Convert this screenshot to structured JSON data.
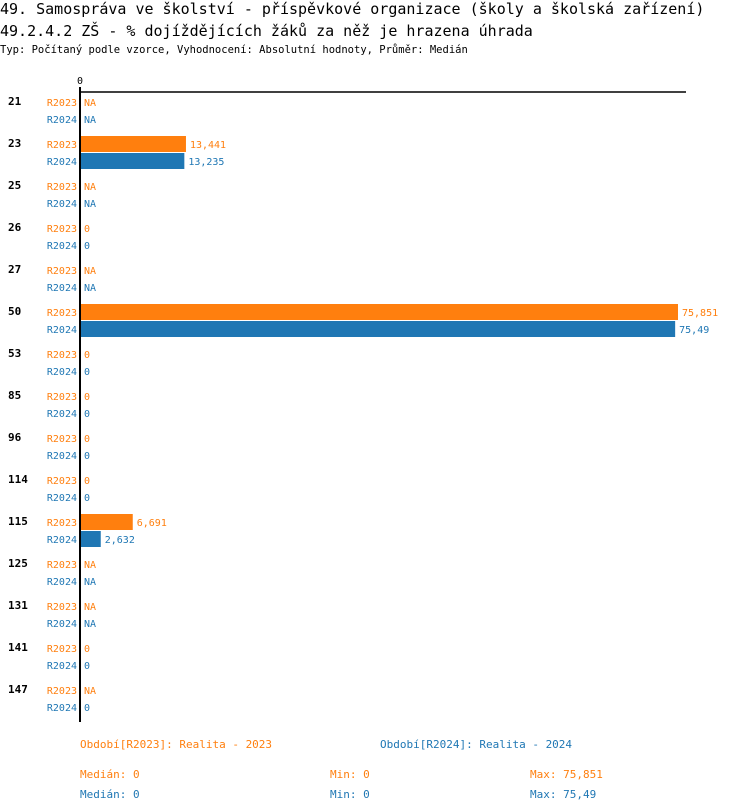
{
  "header": {
    "title": "49. Samospráva ve školství - příspěvkové organizace (školy a školská zařízení)",
    "subtitle": "49.2.4.2 ZŠ - % dojíždějících žáků za něž je hrazena úhrada",
    "meta": "Typ: Počítaný podle vzorce, Vyhodnocení: Absolutní hodnoty, Průměr: Medián"
  },
  "chart_data": {
    "type": "bar",
    "orientation": "horizontal",
    "axis_zero_label": "0",
    "xlim": [
      0,
      77
    ],
    "categories": [
      "21",
      "23",
      "25",
      "26",
      "27",
      "50",
      "53",
      "85",
      "96",
      "114",
      "115",
      "125",
      "131",
      "141",
      "147"
    ],
    "series": [
      {
        "name": "R2023",
        "color": "#ff7f0e",
        "values": [
          null,
          13.441,
          null,
          0,
          null,
          75.851,
          0,
          0,
          0,
          0,
          6.691,
          null,
          null,
          0,
          null
        ],
        "labels": [
          "NA",
          "13,441",
          "NA",
          "0",
          "NA",
          "75,851",
          "0",
          "0",
          "0",
          "0",
          "6,691",
          "NA",
          "NA",
          "0",
          "NA"
        ]
      },
      {
        "name": "R2024",
        "color": "#1f77b4",
        "values": [
          null,
          13.235,
          null,
          0,
          null,
          75.49,
          0,
          0,
          0,
          0,
          2.632,
          null,
          null,
          0,
          0
        ],
        "labels": [
          "NA",
          "13,235",
          "NA",
          "0",
          "NA",
          "75,49",
          "0",
          "0",
          "0",
          "0",
          "2,632",
          "NA",
          "NA",
          "0",
          "0"
        ]
      }
    ]
  },
  "legend": {
    "r2023": {
      "title": "Období[R2023]: Realita - 2023",
      "median": "Medián: 0",
      "min": "Min: 0",
      "max": "Max: 75,851"
    },
    "r2024": {
      "title": "Období[R2024]: Realita - 2024",
      "median": "Medián: 0",
      "min": "Min: 0",
      "max": "Max: 75,49"
    }
  }
}
